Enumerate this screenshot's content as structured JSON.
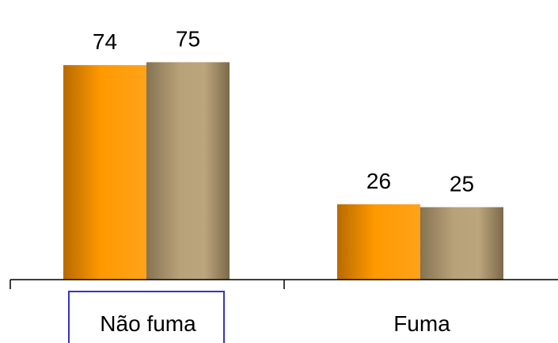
{
  "chart_data": {
    "type": "bar",
    "categories": [
      "Não fuma",
      "Fuma"
    ],
    "series": [
      {
        "values": [
          74,
          26
        ],
        "color": "#ff9900"
      },
      {
        "values": [
          75,
          25
        ],
        "color": "#b8a27a"
      }
    ],
    "ylim": [
      0,
      100
    ],
    "grid": false,
    "legend": "none",
    "selected_category": "Não fuma",
    "selection_color": "#3333cc"
  }
}
